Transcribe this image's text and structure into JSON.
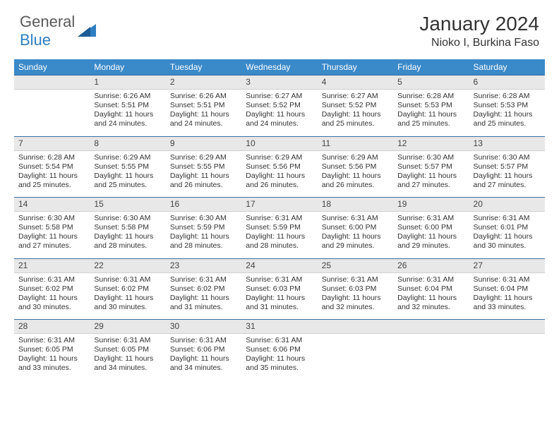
{
  "logo": {
    "word1": "General",
    "word2": "Blue"
  },
  "title": "January 2024",
  "location": "Nioko I, Burkina Faso",
  "colors": {
    "header_bg": "#3a89c9",
    "header_text": "#ffffff",
    "daynum_bg": "#e8e8e8",
    "border_accent": "#3a6fa0",
    "body_text": "#333333",
    "logo_gray": "#5a5a5a",
    "logo_blue": "#2f7fc2"
  },
  "weekdays": [
    "Sunday",
    "Monday",
    "Tuesday",
    "Wednesday",
    "Thursday",
    "Friday",
    "Saturday"
  ],
  "weeks": [
    {
      "nums": [
        "",
        "1",
        "2",
        "3",
        "4",
        "5",
        "6"
      ],
      "cells": [
        null,
        {
          "sunrise": "6:26 AM",
          "sunset": "5:51 PM",
          "daylight": "11 hours and 24 minutes."
        },
        {
          "sunrise": "6:26 AM",
          "sunset": "5:51 PM",
          "daylight": "11 hours and 24 minutes."
        },
        {
          "sunrise": "6:27 AM",
          "sunset": "5:52 PM",
          "daylight": "11 hours and 24 minutes."
        },
        {
          "sunrise": "6:27 AM",
          "sunset": "5:52 PM",
          "daylight": "11 hours and 25 minutes."
        },
        {
          "sunrise": "6:28 AM",
          "sunset": "5:53 PM",
          "daylight": "11 hours and 25 minutes."
        },
        {
          "sunrise": "6:28 AM",
          "sunset": "5:53 PM",
          "daylight": "11 hours and 25 minutes."
        }
      ]
    },
    {
      "nums": [
        "7",
        "8",
        "9",
        "10",
        "11",
        "12",
        "13"
      ],
      "cells": [
        {
          "sunrise": "6:28 AM",
          "sunset": "5:54 PM",
          "daylight": "11 hours and 25 minutes."
        },
        {
          "sunrise": "6:29 AM",
          "sunset": "5:55 PM",
          "daylight": "11 hours and 25 minutes."
        },
        {
          "sunrise": "6:29 AM",
          "sunset": "5:55 PM",
          "daylight": "11 hours and 26 minutes."
        },
        {
          "sunrise": "6:29 AM",
          "sunset": "5:56 PM",
          "daylight": "11 hours and 26 minutes."
        },
        {
          "sunrise": "6:29 AM",
          "sunset": "5:56 PM",
          "daylight": "11 hours and 26 minutes."
        },
        {
          "sunrise": "6:30 AM",
          "sunset": "5:57 PM",
          "daylight": "11 hours and 27 minutes."
        },
        {
          "sunrise": "6:30 AM",
          "sunset": "5:57 PM",
          "daylight": "11 hours and 27 minutes."
        }
      ]
    },
    {
      "nums": [
        "14",
        "15",
        "16",
        "17",
        "18",
        "19",
        "20"
      ],
      "cells": [
        {
          "sunrise": "6:30 AM",
          "sunset": "5:58 PM",
          "daylight": "11 hours and 27 minutes."
        },
        {
          "sunrise": "6:30 AM",
          "sunset": "5:58 PM",
          "daylight": "11 hours and 28 minutes."
        },
        {
          "sunrise": "6:30 AM",
          "sunset": "5:59 PM",
          "daylight": "11 hours and 28 minutes."
        },
        {
          "sunrise": "6:31 AM",
          "sunset": "5:59 PM",
          "daylight": "11 hours and 28 minutes."
        },
        {
          "sunrise": "6:31 AM",
          "sunset": "6:00 PM",
          "daylight": "11 hours and 29 minutes."
        },
        {
          "sunrise": "6:31 AM",
          "sunset": "6:00 PM",
          "daylight": "11 hours and 29 minutes."
        },
        {
          "sunrise": "6:31 AM",
          "sunset": "6:01 PM",
          "daylight": "11 hours and 30 minutes."
        }
      ]
    },
    {
      "nums": [
        "21",
        "22",
        "23",
        "24",
        "25",
        "26",
        "27"
      ],
      "cells": [
        {
          "sunrise": "6:31 AM",
          "sunset": "6:02 PM",
          "daylight": "11 hours and 30 minutes."
        },
        {
          "sunrise": "6:31 AM",
          "sunset": "6:02 PM",
          "daylight": "11 hours and 30 minutes."
        },
        {
          "sunrise": "6:31 AM",
          "sunset": "6:02 PM",
          "daylight": "11 hours and 31 minutes."
        },
        {
          "sunrise": "6:31 AM",
          "sunset": "6:03 PM",
          "daylight": "11 hours and 31 minutes."
        },
        {
          "sunrise": "6:31 AM",
          "sunset": "6:03 PM",
          "daylight": "11 hours and 32 minutes."
        },
        {
          "sunrise": "6:31 AM",
          "sunset": "6:04 PM",
          "daylight": "11 hours and 32 minutes."
        },
        {
          "sunrise": "6:31 AM",
          "sunset": "6:04 PM",
          "daylight": "11 hours and 33 minutes."
        }
      ]
    },
    {
      "nums": [
        "28",
        "29",
        "30",
        "31",
        "",
        "",
        ""
      ],
      "cells": [
        {
          "sunrise": "6:31 AM",
          "sunset": "6:05 PM",
          "daylight": "11 hours and 33 minutes."
        },
        {
          "sunrise": "6:31 AM",
          "sunset": "6:05 PM",
          "daylight": "11 hours and 34 minutes."
        },
        {
          "sunrise": "6:31 AM",
          "sunset": "6:06 PM",
          "daylight": "11 hours and 34 minutes."
        },
        {
          "sunrise": "6:31 AM",
          "sunset": "6:06 PM",
          "daylight": "11 hours and 35 minutes."
        },
        null,
        null,
        null
      ]
    }
  ],
  "labels": {
    "sunrise": "Sunrise: ",
    "sunset": "Sunset: ",
    "daylight": "Daylight: "
  }
}
